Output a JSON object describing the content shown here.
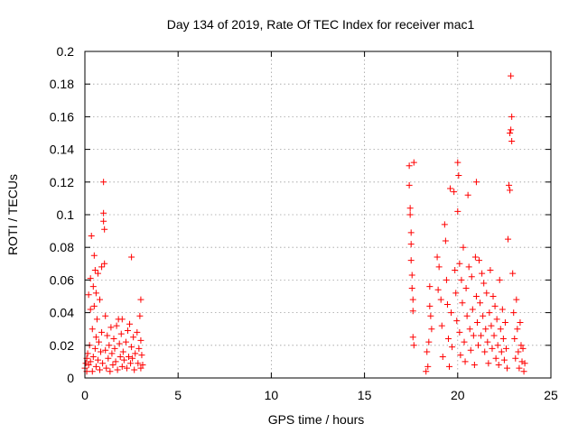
{
  "chart_data": {
    "type": "scatter",
    "title": "Day 134 of 2019, Rate Of TEC Index for receiver mac1",
    "xlabel": "GPS time / hours",
    "ylabel": "ROTI / TECUs",
    "xlim": [
      0,
      25
    ],
    "ylim": [
      0,
      0.2
    ],
    "x_ticks": [
      "0",
      "5",
      "10",
      "15",
      "20",
      "25"
    ],
    "y_ticks": [
      "0",
      "0.02",
      "0.04",
      "0.06",
      "0.08",
      "0.1",
      "0.12",
      "0.14",
      "0.16",
      "0.18",
      "0.2"
    ],
    "grid": true,
    "marker": "+",
    "color": "#ff0000",
    "series": [
      {
        "points": [
          [
            0.0,
            0.006
          ],
          [
            0.05,
            0.009
          ],
          [
            0.1,
            0.012
          ],
          [
            0.1,
            0.004
          ],
          [
            0.15,
            0.015
          ],
          [
            0.2,
            0.008
          ],
          [
            0.2,
            0.051
          ],
          [
            0.25,
            0.02
          ],
          [
            0.3,
            0.042
          ],
          [
            0.3,
            0.01
          ],
          [
            0.3,
            0.061
          ],
          [
            0.35,
            0.087
          ],
          [
            0.4,
            0.004
          ],
          [
            0.4,
            0.03
          ],
          [
            0.45,
            0.056
          ],
          [
            0.45,
            0.013
          ],
          [
            0.5,
            0.075
          ],
          [
            0.5,
            0.044
          ],
          [
            0.55,
            0.066
          ],
          [
            0.55,
            0.018
          ],
          [
            0.6,
            0.025
          ],
          [
            0.6,
            0.007
          ],
          [
            0.6,
            0.052
          ],
          [
            0.65,
            0.036
          ],
          [
            0.7,
            0.011
          ],
          [
            0.7,
            0.064
          ],
          [
            0.75,
            0.022
          ],
          [
            0.8,
            0.005
          ],
          [
            0.8,
            0.048
          ],
          [
            0.85,
            0.016
          ],
          [
            0.9,
            0.068
          ],
          [
            0.9,
            0.028
          ],
          [
            0.95,
            0.009
          ],
          [
            1.0,
            0.12
          ],
          [
            1.0,
            0.101
          ],
          [
            1.0,
            0.096
          ],
          [
            1.05,
            0.091
          ],
          [
            1.05,
            0.07
          ],
          [
            1.1,
            0.038
          ],
          [
            1.1,
            0.017
          ],
          [
            1.15,
            0.006
          ],
          [
            1.2,
            0.026
          ],
          [
            1.25,
            0.012
          ],
          [
            1.3,
            0.02
          ],
          [
            1.35,
            0.004
          ],
          [
            1.4,
            0.031
          ],
          [
            1.45,
            0.015
          ],
          [
            1.5,
            0.008
          ],
          [
            1.55,
            0.024
          ],
          [
            1.6,
            0.018
          ],
          [
            1.65,
            0.01
          ],
          [
            1.7,
            0.032
          ],
          [
            1.75,
            0.005
          ],
          [
            1.8,
            0.036
          ],
          [
            1.85,
            0.021
          ],
          [
            1.9,
            0.013
          ],
          [
            1.95,
            0.027
          ],
          [
            2.0,
            0.007
          ],
          [
            2.0,
            0.036
          ],
          [
            2.05,
            0.016
          ],
          [
            2.1,
            0.011
          ],
          [
            2.2,
            0.022
          ],
          [
            2.25,
            0.006
          ],
          [
            2.3,
            0.029
          ],
          [
            2.35,
            0.013
          ],
          [
            2.4,
            0.033
          ],
          [
            2.45,
            0.009
          ],
          [
            2.5,
            0.074
          ],
          [
            2.5,
            0.019
          ],
          [
            2.55,
            0.012
          ],
          [
            2.6,
            0.025
          ],
          [
            2.65,
            0.005
          ],
          [
            2.7,
            0.015
          ],
          [
            2.8,
            0.028
          ],
          [
            2.85,
            0.009
          ],
          [
            2.9,
            0.018
          ],
          [
            2.95,
            0.038
          ],
          [
            3.0,
            0.048
          ],
          [
            3.0,
            0.006
          ],
          [
            3.0,
            0.023
          ],
          [
            3.05,
            0.014
          ],
          [
            3.1,
            0.008
          ],
          [
            17.4,
            0.13
          ],
          [
            17.4,
            0.118
          ],
          [
            17.45,
            0.104
          ],
          [
            17.45,
            0.1
          ],
          [
            17.5,
            0.089
          ],
          [
            17.5,
            0.082
          ],
          [
            17.5,
            0.072
          ],
          [
            17.55,
            0.063
          ],
          [
            17.55,
            0.055
          ],
          [
            17.6,
            0.048
          ],
          [
            17.6,
            0.041
          ],
          [
            17.6,
            0.025
          ],
          [
            17.65,
            0.02
          ],
          [
            17.65,
            0.132
          ],
          [
            18.3,
            0.004
          ],
          [
            18.35,
            0.016
          ],
          [
            18.4,
            0.007
          ],
          [
            18.45,
            0.022
          ],
          [
            18.5,
            0.044
          ],
          [
            18.5,
            0.056
          ],
          [
            18.55,
            0.038
          ],
          [
            18.6,
            0.03
          ],
          [
            18.9,
            0.074
          ],
          [
            18.95,
            0.054
          ],
          [
            19.0,
            0.068
          ],
          [
            19.1,
            0.048
          ],
          [
            19.15,
            0.032
          ],
          [
            19.2,
            0.013
          ],
          [
            19.3,
            0.094
          ],
          [
            19.35,
            0.084
          ],
          [
            19.4,
            0.06
          ],
          [
            19.45,
            0.045
          ],
          [
            19.5,
            0.024
          ],
          [
            19.55,
            0.007
          ],
          [
            19.6,
            0.116
          ],
          [
            19.65,
            0.04
          ],
          [
            19.7,
            0.019
          ],
          [
            19.8,
            0.114
          ],
          [
            19.85,
            0.066
          ],
          [
            19.9,
            0.052
          ],
          [
            19.95,
            0.035
          ],
          [
            20.0,
            0.132
          ],
          [
            20.0,
            0.102
          ],
          [
            20.05,
            0.124
          ],
          [
            20.1,
            0.07
          ],
          [
            20.1,
            0.028
          ],
          [
            20.15,
            0.014
          ],
          [
            20.2,
            0.06
          ],
          [
            20.25,
            0.046
          ],
          [
            20.3,
            0.08
          ],
          [
            20.35,
            0.022
          ],
          [
            20.4,
            0.01
          ],
          [
            20.45,
            0.055
          ],
          [
            20.5,
            0.038
          ],
          [
            20.55,
            0.112
          ],
          [
            20.6,
            0.068
          ],
          [
            20.65,
            0.03
          ],
          [
            20.7,
            0.017
          ],
          [
            20.75,
            0.062
          ],
          [
            20.8,
            0.042
          ],
          [
            20.85,
            0.026
          ],
          [
            20.9,
            0.008
          ],
          [
            20.95,
            0.074
          ],
          [
            21.0,
            0.12
          ],
          [
            21.0,
            0.05
          ],
          [
            21.05,
            0.034
          ],
          [
            21.1,
            0.02
          ],
          [
            21.15,
            0.072
          ],
          [
            21.2,
            0.046
          ],
          [
            21.25,
            0.026
          ],
          [
            21.3,
            0.064
          ],
          [
            21.35,
            0.038
          ],
          [
            21.4,
            0.058
          ],
          [
            21.45,
            0.016
          ],
          [
            21.5,
            0.03
          ],
          [
            21.55,
            0.052
          ],
          [
            21.6,
            0.022
          ],
          [
            21.65,
            0.009
          ],
          [
            21.7,
            0.04
          ],
          [
            21.75,
            0.066
          ],
          [
            21.8,
            0.032
          ],
          [
            21.85,
            0.018
          ],
          [
            21.9,
            0.05
          ],
          [
            21.95,
            0.026
          ],
          [
            22.0,
            0.044
          ],
          [
            22.05,
            0.012
          ],
          [
            22.1,
            0.036
          ],
          [
            22.15,
            0.02
          ],
          [
            22.2,
            0.008
          ],
          [
            22.25,
            0.06
          ],
          [
            22.3,
            0.03
          ],
          [
            22.35,
            0.016
          ],
          [
            22.4,
            0.042
          ],
          [
            22.45,
            0.024
          ],
          [
            22.5,
            0.011
          ],
          [
            22.55,
            0.034
          ],
          [
            22.6,
            0.018
          ],
          [
            22.65,
            0.006
          ],
          [
            22.7,
            0.085
          ],
          [
            22.75,
            0.118
          ],
          [
            22.8,
            0.115
          ],
          [
            22.8,
            0.15
          ],
          [
            22.85,
            0.152
          ],
          [
            22.85,
            0.185
          ],
          [
            22.9,
            0.16
          ],
          [
            22.9,
            0.145
          ],
          [
            22.95,
            0.064
          ],
          [
            23.0,
            0.04
          ],
          [
            23.05,
            0.024
          ],
          [
            23.1,
            0.012
          ],
          [
            23.15,
            0.048
          ],
          [
            23.2,
            0.03
          ],
          [
            23.25,
            0.016
          ],
          [
            23.3,
            0.006
          ],
          [
            23.35,
            0.034
          ],
          [
            23.4,
            0.02
          ],
          [
            23.45,
            0.01
          ],
          [
            23.5,
            0.018
          ],
          [
            23.55,
            0.004
          ],
          [
            23.6,
            0.009
          ]
        ]
      }
    ]
  }
}
